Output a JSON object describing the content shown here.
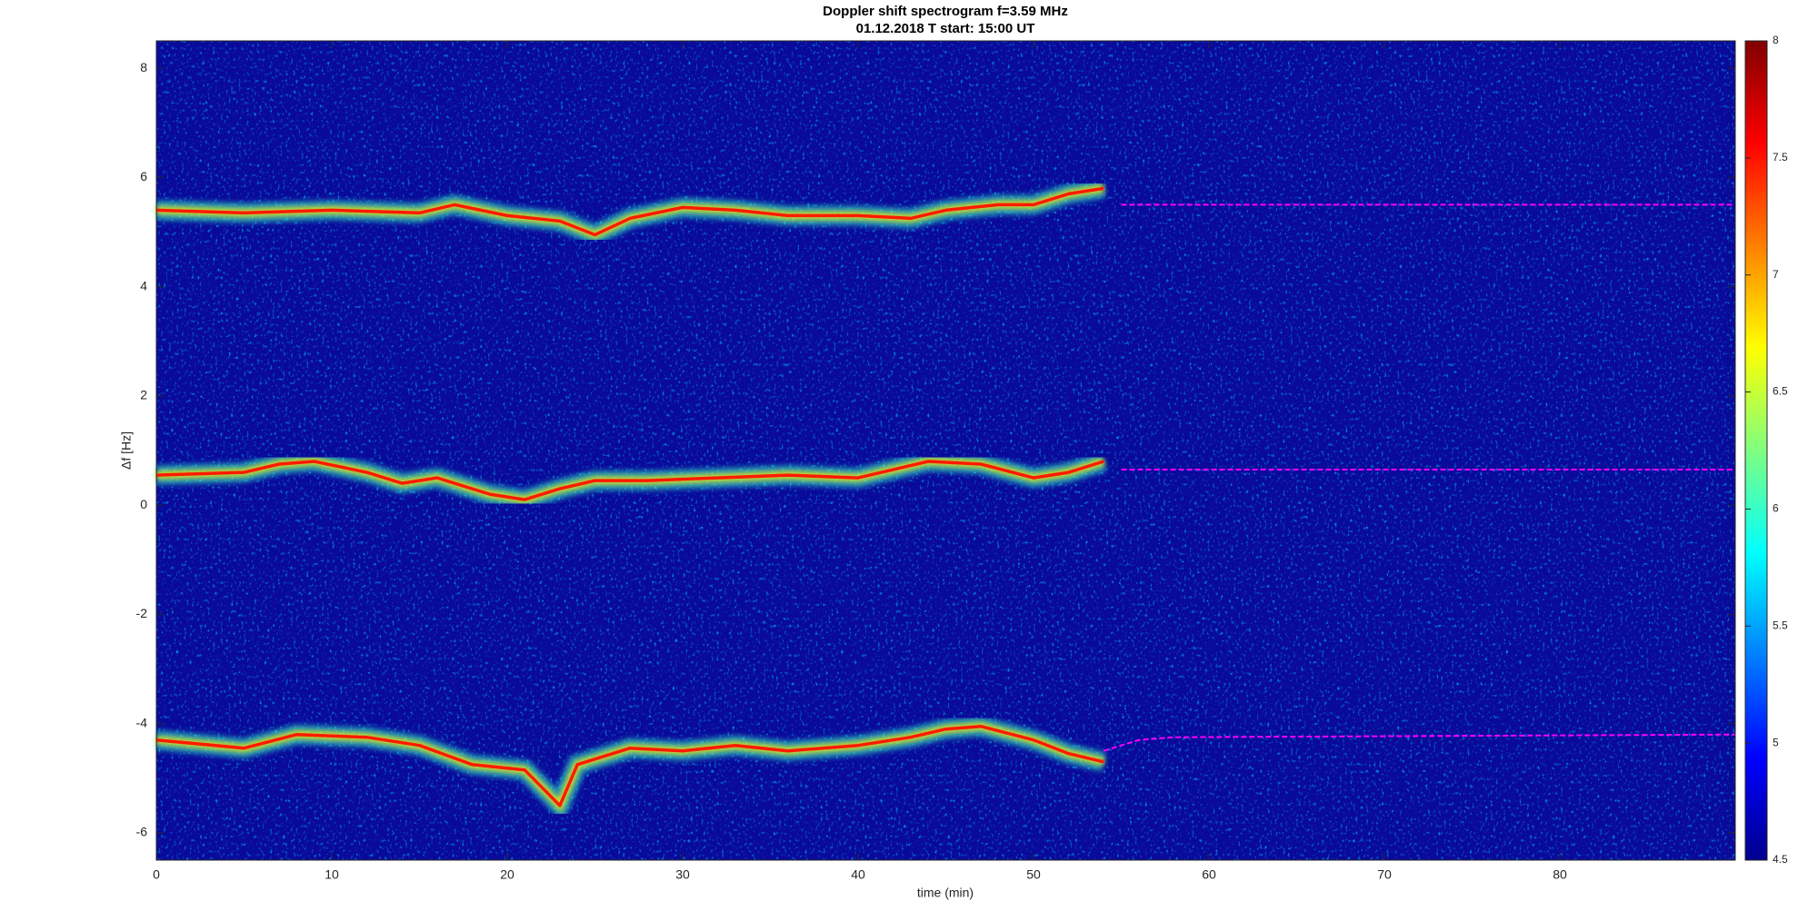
{
  "chart_data": {
    "type": "spectrogram",
    "title": "Doppler shift spectrogram f=3.59 MHz",
    "subtitle": "01.12.2018   T start: 15:00 UT",
    "xlabel": "time (min)",
    "ylabel": "Δf [Hz]",
    "xlim": [
      0,
      90
    ],
    "xticks": [
      0,
      10,
      20,
      30,
      40,
      50,
      60,
      70,
      80
    ],
    "ylim": [
      -6.5,
      8.5
    ],
    "yticks": [
      -6,
      -4,
      -2,
      0,
      2,
      4,
      6,
      8
    ],
    "colormap": "jet",
    "clim": [
      4.5,
      8
    ],
    "cticks": [
      4.5,
      5,
      5.5,
      6,
      6.5,
      7,
      7.5,
      8
    ],
    "series": [
      {
        "color": "#ff1a00",
        "x": [
          0,
          5,
          10,
          15,
          17,
          20,
          23,
          25,
          27,
          30,
          33,
          36,
          40,
          43,
          45,
          48,
          50,
          52,
          54
        ],
        "values": [
          5.4,
          5.35,
          5.4,
          5.35,
          5.5,
          5.3,
          5.2,
          4.95,
          5.25,
          5.45,
          5.4,
          5.3,
          5.3,
          5.25,
          5.4,
          5.5,
          5.5,
          5.7,
          5.8
        ]
      },
      {
        "color": "#ff1a00",
        "x": [
          0,
          5,
          7,
          9,
          12,
          14,
          16,
          19,
          21,
          23,
          25,
          28,
          32,
          36,
          40,
          44,
          47,
          50,
          52,
          54
        ],
        "values": [
          0.55,
          0.6,
          0.75,
          0.8,
          0.6,
          0.4,
          0.5,
          0.2,
          0.1,
          0.3,
          0.45,
          0.45,
          0.5,
          0.55,
          0.5,
          0.8,
          0.75,
          0.5,
          0.6,
          0.8
        ]
      },
      {
        "color": "#ff1a00",
        "x": [
          0,
          5,
          8,
          12,
          15,
          18,
          21,
          23,
          24,
          27,
          30,
          33,
          36,
          40,
          43,
          45,
          47,
          50,
          52,
          54
        ],
        "values": [
          -4.3,
          -4.45,
          -4.2,
          -4.25,
          -4.4,
          -4.75,
          -4.85,
          -5.5,
          -4.75,
          -4.45,
          -4.5,
          -4.4,
          -4.5,
          -4.4,
          -4.25,
          -4.1,
          -4.05,
          -4.3,
          -4.55,
          -4.7
        ]
      },
      {
        "color": "#ff00ff",
        "x": [
          55,
          90
        ],
        "values": [
          5.5,
          5.5
        ]
      },
      {
        "color": "#ff00ff",
        "x": [
          55,
          90
        ],
        "values": [
          0.65,
          0.65
        ]
      },
      {
        "color": "#ff00ff",
        "x": [
          54,
          56,
          58,
          90
        ],
        "values": [
          -4.5,
          -4.3,
          -4.25,
          -4.2
        ]
      }
    ]
  }
}
